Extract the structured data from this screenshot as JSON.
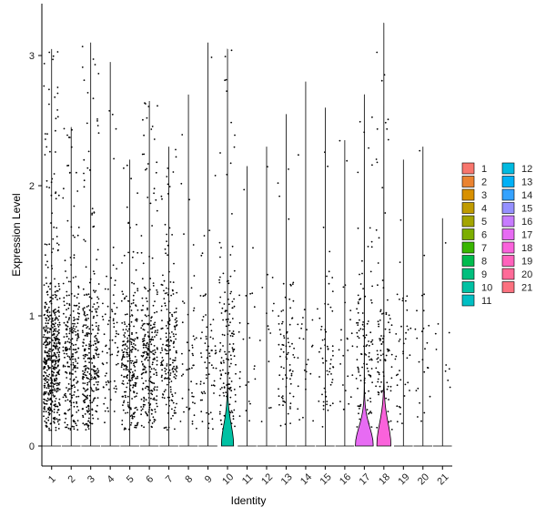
{
  "chart_data": {
    "type": "violin",
    "xlabel": "Identity",
    "ylabel": "Expression Level",
    "ylim": [
      -0.15,
      3.35
    ],
    "yticks": [
      0,
      1,
      2,
      3
    ],
    "grid": false,
    "legend_position": "right",
    "categories": [
      "1",
      "2",
      "3",
      "4",
      "5",
      "6",
      "7",
      "8",
      "9",
      "10",
      "11",
      "12",
      "13",
      "14",
      "15",
      "16",
      "17",
      "18",
      "19",
      "20",
      "21"
    ],
    "colors": [
      "#F8766D",
      "#EA8331",
      "#D89000",
      "#C09B00",
      "#A3A500",
      "#7CAE00",
      "#39B600",
      "#00BB4E",
      "#00BF7D",
      "#00C1A3",
      "#00BFC4",
      "#00BAE0",
      "#00B0F6",
      "#35A2FF",
      "#9590FF",
      "#C77CFF",
      "#E76BF3",
      "#FA62DB",
      "#FF62BC",
      "#FF6A98",
      "#FC717F"
    ],
    "max_expression": [
      3.05,
      2.45,
      3.1,
      2.95,
      2.2,
      2.65,
      2.3,
      2.7,
      3.1,
      3.05,
      2.15,
      2.3,
      2.55,
      2.8,
      2.6,
      2.35,
      2.7,
      3.25,
      2.2,
      2.3,
      1.75
    ],
    "violin_max_density": [
      0,
      0,
      0,
      0,
      0,
      0,
      0,
      0,
      0,
      0.65,
      0,
      0,
      0,
      0,
      0,
      0,
      0.95,
      0.75,
      0,
      0,
      0
    ],
    "dot_density": [
      520,
      260,
      300,
      80,
      250,
      260,
      200,
      50,
      70,
      150,
      25,
      15,
      80,
      25,
      60,
      25,
      120,
      100,
      40,
      25,
      10
    ]
  }
}
